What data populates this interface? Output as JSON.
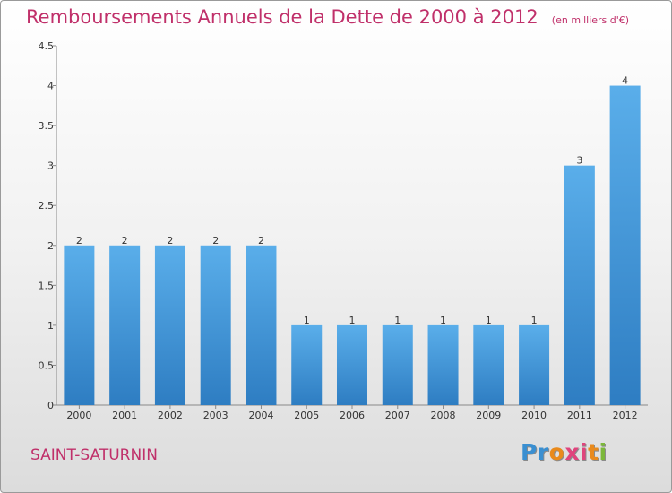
{
  "chart_data": {
    "type": "bar",
    "title": "Remboursements Annuels de la Dette de 2000 à 2012",
    "subtitle": "(en milliers d'€)",
    "categories": [
      "2000",
      "2001",
      "2002",
      "2003",
      "2004",
      "2005",
      "2006",
      "2007",
      "2008",
      "2009",
      "2010",
      "2011",
      "2012"
    ],
    "values": [
      2,
      2,
      2,
      2,
      2,
      1,
      1,
      1,
      1,
      1,
      1,
      3,
      4
    ],
    "data_labels": [
      "2",
      "2",
      "2",
      "2",
      "2",
      "1",
      "1",
      "1",
      "1",
      "1",
      "1",
      "3",
      "4"
    ],
    "y_ticks": [
      "0",
      "0.5",
      "1",
      "1.5",
      "2",
      "2.5",
      "3",
      "3.5",
      "4",
      "4.5"
    ],
    "ylim": [
      0,
      4.5
    ],
    "grid": false,
    "bar_color": "#3b8fd6"
  },
  "footer": {
    "commune": "SAINT-SATURNIN",
    "logo_letters": [
      "P",
      "r",
      "o",
      "x",
      "i",
      "t",
      "i"
    ],
    "logo_colors": [
      "#3a8fd1",
      "#3a8fd1",
      "#e98a1c",
      "#e0447c",
      "#e0447c",
      "#e98a1c",
      "#7cb83a"
    ]
  }
}
